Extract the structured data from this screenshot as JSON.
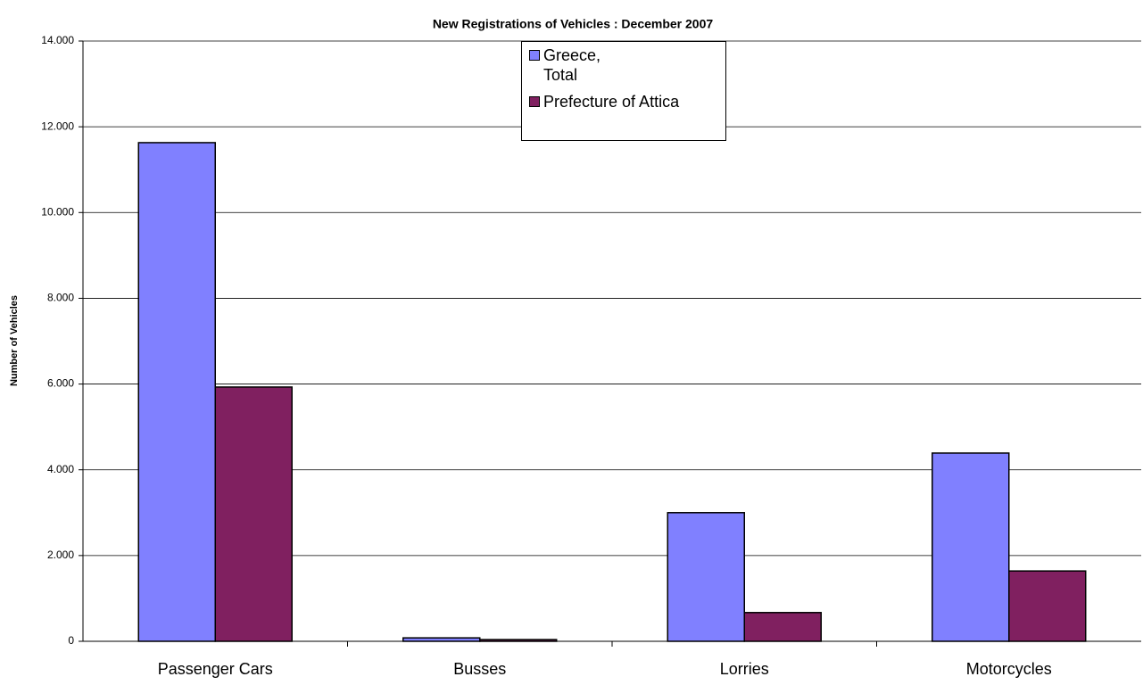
{
  "chart_data": {
    "type": "bar",
    "title": "New Registrations of Vehicles : December 2007",
    "y_label": "Number of Vehicles",
    "categories": [
      "Passenger Cars",
      "Busses",
      "Lorries",
      "Motorcycles"
    ],
    "series": [
      {
        "name": "Greece,\nTotal",
        "color": "#8080ff",
        "values": [
          11630,
          80,
          3000,
          4390
        ]
      },
      {
        "name": "Prefecture of Attica",
        "color": "#802060",
        "values": [
          5930,
          40,
          670,
          1640
        ]
      }
    ],
    "ylim": [
      0,
      14000
    ],
    "yticks": [
      0,
      {
        "value": 2000,
        "label": "2.000"
      },
      {
        "value": 4000,
        "label": "4.000"
      },
      {
        "value": 6000,
        "label": "6.000"
      },
      {
        "value": 8000,
        "label": "8.000"
      },
      {
        "value": 10000,
        "label": "10.000"
      },
      {
        "value": 12000,
        "label": "12.000"
      },
      {
        "value": 14000,
        "label": "14.000"
      }
    ],
    "grid": true
  }
}
